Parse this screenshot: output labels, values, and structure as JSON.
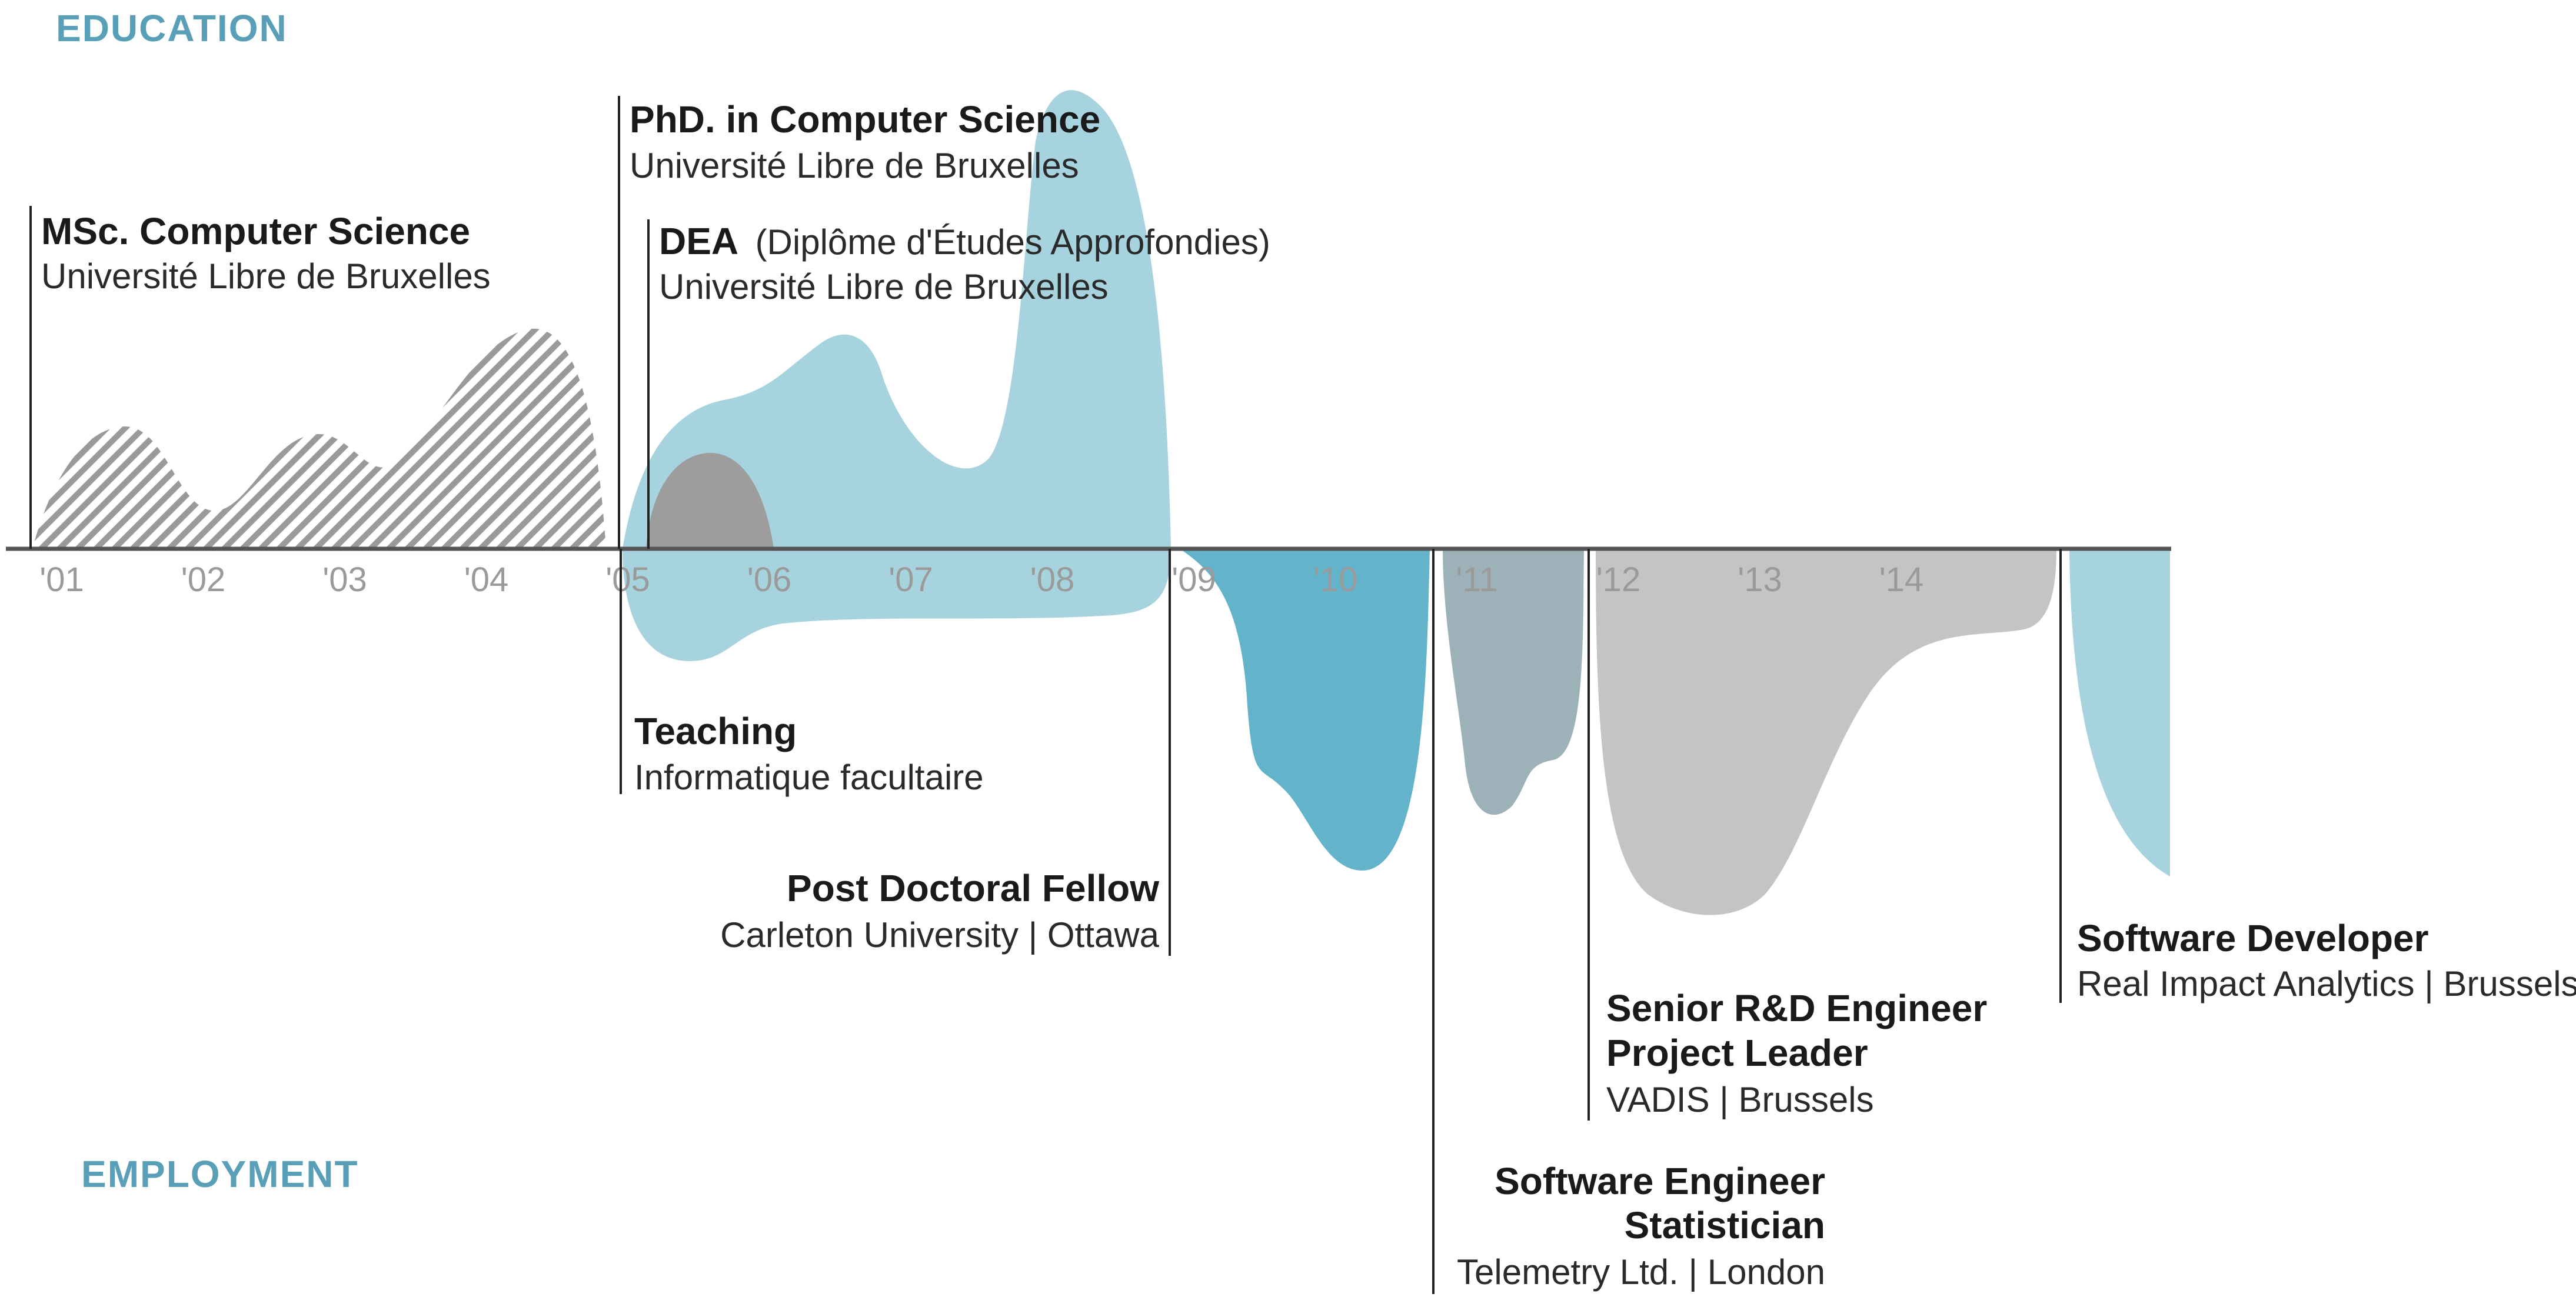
{
  "colors": {
    "heading": "#5a9fb8",
    "light_blue": "#a7d3df",
    "mid_blue": "#63b3ca",
    "slate": "#9db1b8",
    "grey": "#9d9d9d",
    "light_grey": "#c4c4c4",
    "hatch": "#9a9a9a"
  },
  "sections": {
    "education": "EDUCATION",
    "employment": "EMPLOYMENT"
  },
  "axis": {
    "ticks": [
      "'01",
      "'02",
      "'03",
      "'04",
      "'05",
      "'06",
      "'07",
      "'08",
      "'09",
      "'10",
      "'11",
      "'12",
      "'13",
      "'14"
    ]
  },
  "education": [
    {
      "key": "msc",
      "title": "MSc. Computer Science",
      "subtitle": "Université Libre de Bruxelles"
    },
    {
      "key": "phd",
      "title": "PhD. in Computer Science",
      "subtitle": "Université Libre de Bruxelles"
    },
    {
      "key": "dea",
      "title": "DEA",
      "title_extra": "(Diplôme d'Études Approfondies)",
      "subtitle": "Université Libre de Bruxelles"
    }
  ],
  "employment": [
    {
      "key": "teaching",
      "title": "Teaching",
      "subtitle": "Informatique facultaire"
    },
    {
      "key": "postdoc",
      "title": "Post Doctoral Fellow",
      "subtitle": "Carleton University | Ottawa"
    },
    {
      "key": "telemetry",
      "title": "Software Engineer",
      "title2": "Statistician",
      "subtitle": "Telemetry Ltd. | London"
    },
    {
      "key": "vadis",
      "title": "Senior R&D Engineer",
      "title2": "Project Leader",
      "subtitle": "VADIS | Brussels"
    },
    {
      "key": "ria",
      "title": "Software Developer",
      "subtitle": "Real Impact Analytics | Brussels"
    }
  ]
}
